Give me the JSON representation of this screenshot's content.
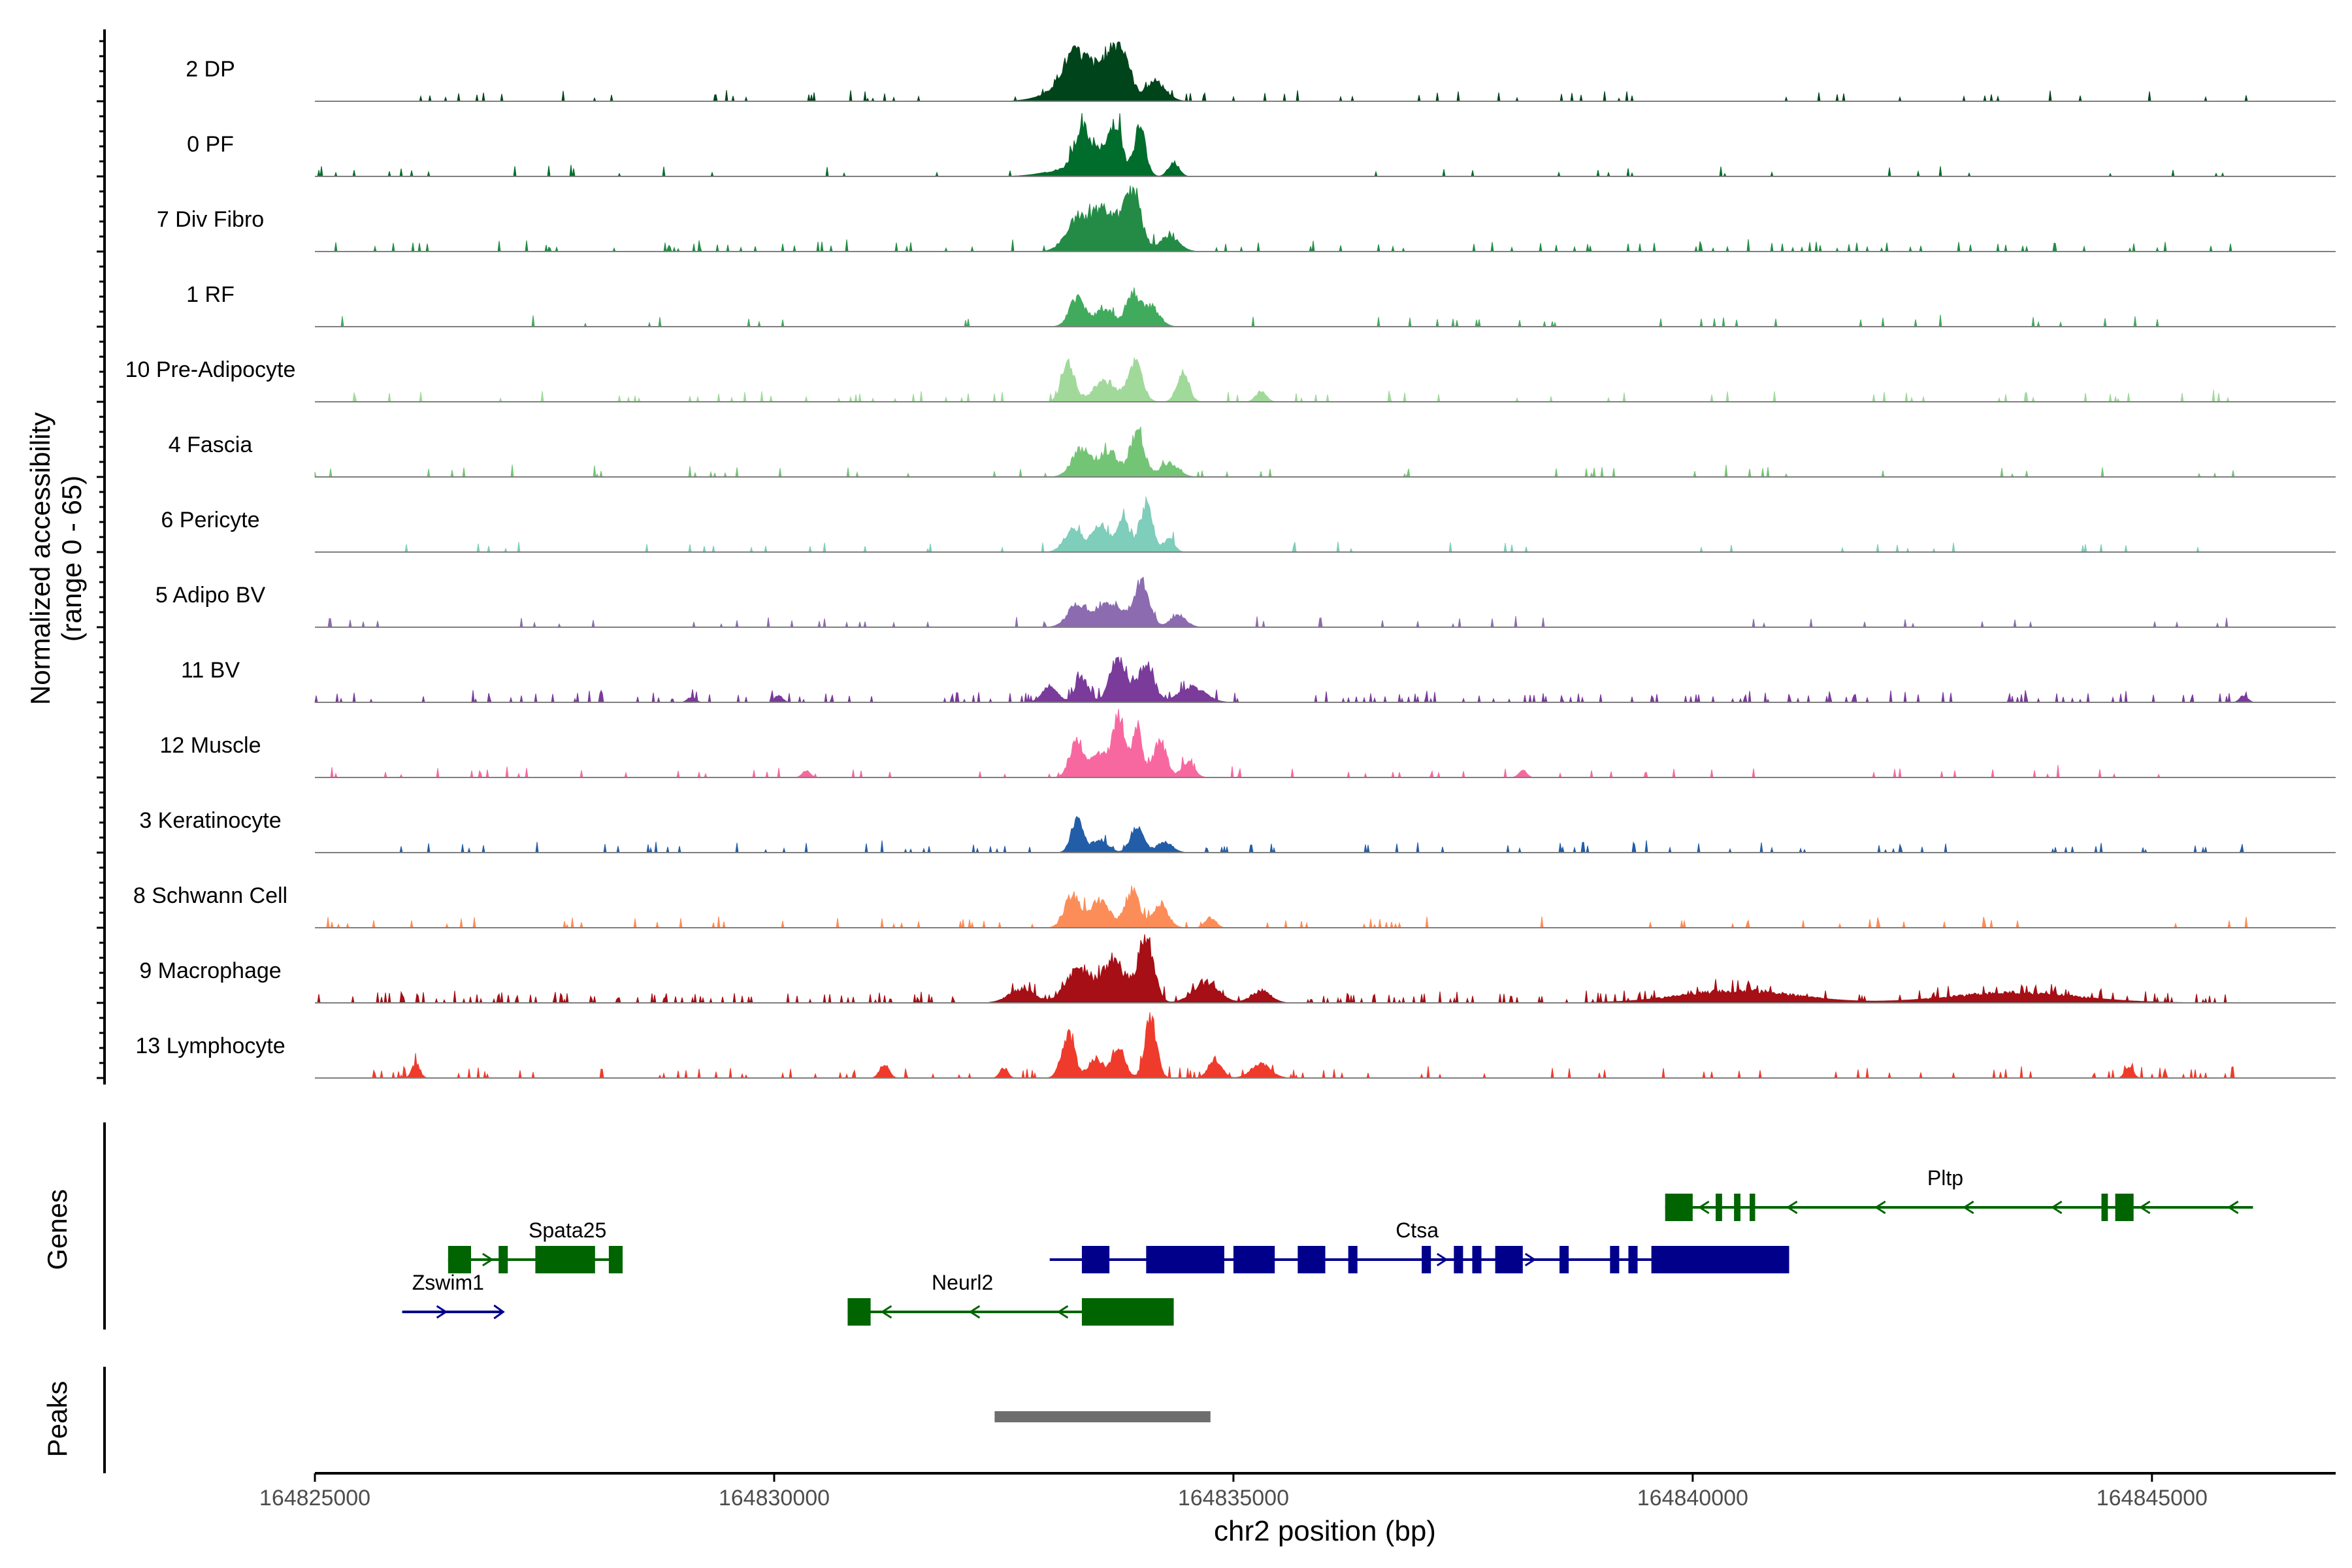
{
  "chart_data": {
    "type": "area",
    "title": "",
    "xlabel": "chr2 position (bp)",
    "ylabel_lines": [
      "Normalized accessibility",
      "(range 0 - 65)"
    ],
    "chromosome": "chr2",
    "xlim": [
      164825000,
      164847000
    ],
    "x_ticks": [
      164825000,
      164830000,
      164835000,
      164840000,
      164845000
    ],
    "x_tick_labels": [
      "164825000",
      "164830000",
      "164835000",
      "164840000",
      "164845000"
    ],
    "y_range": [
      0,
      65
    ],
    "track_start": 164825000,
    "track_end": 164846100,
    "tracks": [
      {
        "name": "2 DP",
        "color": "#00441b",
        "bumps": [
          [
            164833250,
            180,
            0.55
          ],
          [
            164833450,
            150,
            0.35
          ],
          [
            164833650,
            130,
            0.58
          ],
          [
            164833800,
            120,
            0.65
          ],
          [
            164834150,
            160,
            0.28
          ],
          [
            164833100,
            300,
            0.12
          ]
        ],
        "noise": 0.03
      },
      {
        "name": "0 PF",
        "color": "#006d2c",
        "bumps": [
          [
            164833350,
            120,
            0.62
          ],
          [
            164833550,
            120,
            0.3
          ],
          [
            164833720,
            100,
            0.78
          ],
          [
            164833980,
            90,
            0.72
          ],
          [
            164834350,
            80,
            0.22
          ],
          [
            164833200,
            350,
            0.1
          ]
        ],
        "noise": 0.03
      },
      {
        "name": "7 Div Fibro",
        "color": "#238b45",
        "bumps": [
          [
            164833300,
            180,
            0.45
          ],
          [
            164833600,
            200,
            0.6
          ],
          [
            164833900,
            130,
            0.9
          ],
          [
            164834300,
            150,
            0.22
          ]
        ],
        "noise": 0.07
      },
      {
        "name": "1 RF",
        "color": "#41ab5d",
        "bumps": [
          [
            164833300,
            120,
            0.42
          ],
          [
            164833600,
            150,
            0.25
          ],
          [
            164833900,
            100,
            0.48
          ],
          [
            164834100,
            130,
            0.3
          ]
        ],
        "noise": 0.03
      },
      {
        "name": "10 Pre-Adipocyte",
        "color": "#a1d99b",
        "bumps": [
          [
            164833200,
            100,
            0.55
          ],
          [
            164833600,
            180,
            0.3
          ],
          [
            164833930,
            110,
            0.55
          ],
          [
            164834450,
            90,
            0.45
          ],
          [
            164835300,
            80,
            0.15
          ]
        ],
        "noise": 0.05
      },
      {
        "name": "4 Fascia",
        "color": "#74c476",
        "bumps": [
          [
            164833350,
            150,
            0.42
          ],
          [
            164833650,
            130,
            0.38
          ],
          [
            164833950,
            110,
            0.68
          ],
          [
            164834300,
            140,
            0.2
          ]
        ],
        "noise": 0.03
      },
      {
        "name": "6 Pericyte",
        "color": "#7fcdbb",
        "bumps": [
          [
            164833250,
            130,
            0.35
          ],
          [
            164833550,
            130,
            0.4
          ],
          [
            164833800,
            90,
            0.55
          ],
          [
            164834050,
            100,
            0.72
          ],
          [
            164834300,
            80,
            0.2
          ]
        ],
        "noise": 0.03
      },
      {
        "name": "5 Adipo BV",
        "color": "#8c6bb1",
        "bumps": [
          [
            164833300,
            150,
            0.32
          ],
          [
            164833650,
            200,
            0.38
          ],
          [
            164834000,
            120,
            0.65
          ],
          [
            164834400,
            120,
            0.18
          ]
        ],
        "noise": 0.04
      },
      {
        "name": "11 BV",
        "color": "#7a3b9a",
        "bumps": [
          [
            164833000,
            120,
            0.22
          ],
          [
            164833350,
            100,
            0.35
          ],
          [
            164833750,
            130,
            0.65
          ],
          [
            164834050,
            120,
            0.55
          ],
          [
            164834550,
            200,
            0.22
          ],
          [
            164829100,
            60,
            0.08
          ],
          [
            164830050,
            60,
            0.1
          ],
          [
            164846000,
            60,
            0.1
          ]
        ],
        "noise": 0.12
      },
      {
        "name": "12 Muscle",
        "color": "#f768a1",
        "bumps": [
          [
            164833300,
            110,
            0.55
          ],
          [
            164833550,
            120,
            0.35
          ],
          [
            164833750,
            90,
            0.95
          ],
          [
            164833950,
            80,
            0.75
          ],
          [
            164834200,
            100,
            0.55
          ],
          [
            164834500,
            100,
            0.22
          ],
          [
            164830350,
            60,
            0.1
          ],
          [
            164838150,
            60,
            0.1
          ]
        ],
        "noise": 0.05
      },
      {
        "name": "3 Keratinocyte",
        "color": "#225ea8",
        "bumps": [
          [
            164833300,
            90,
            0.5
          ],
          [
            164833550,
            120,
            0.2
          ],
          [
            164833950,
            100,
            0.38
          ],
          [
            164834250,
            120,
            0.15
          ]
        ],
        "noise": 0.05
      },
      {
        "name": "8 Schwann Cell",
        "color": "#fc8d59",
        "bumps": [
          [
            164833250,
            120,
            0.5
          ],
          [
            164833550,
            150,
            0.4
          ],
          [
            164833900,
            110,
            0.55
          ],
          [
            164834200,
            120,
            0.35
          ],
          [
            164834750,
            80,
            0.15
          ]
        ],
        "noise": 0.05
      },
      {
        "name": "9 Macrophage",
        "color": "#a50f15",
        "bumps": [
          [
            164832700,
            200,
            0.2
          ],
          [
            164833300,
            180,
            0.5
          ],
          [
            164833700,
            200,
            0.6
          ],
          [
            164834050,
            120,
            0.95
          ],
          [
            164834700,
            200,
            0.3
          ],
          [
            164835300,
            150,
            0.18
          ],
          [
            164840500,
            900,
            0.18
          ],
          [
            164843500,
            1000,
            0.15
          ]
        ],
        "noise": 0.15
      },
      {
        "name": "13 Lymphocyte",
        "color": "#ef3b2c",
        "bumps": [
          [
            164833200,
            100,
            0.65
          ],
          [
            164833500,
            110,
            0.3
          ],
          [
            164833750,
            100,
            0.45
          ],
          [
            164834100,
            90,
            0.9
          ],
          [
            164834800,
            100,
            0.28
          ],
          [
            164835300,
            150,
            0.2
          ],
          [
            164826100,
            60,
            0.22
          ],
          [
            164831200,
            70,
            0.2
          ],
          [
            164832500,
            60,
            0.15
          ],
          [
            164844750,
            60,
            0.18
          ]
        ],
        "noise": 0.08
      }
    ],
    "genes": [
      {
        "name": "Spata25",
        "strand": "+",
        "color": "#006400",
        "row": 1,
        "start": 164826450,
        "end": 164828350,
        "exons": [
          [
            164826450,
            164826700
          ],
          [
            164827000,
            164827100
          ],
          [
            164827400,
            164828050
          ],
          [
            164828200,
            164828350
          ]
        ],
        "label_x": 164827750
      },
      {
        "name": "Zswim1",
        "strand": "+",
        "color": "#00008b",
        "row": 2,
        "start": 164825950,
        "end": 164827050,
        "exons": [],
        "label_x": 164826450
      },
      {
        "name": "Neurl2",
        "strand": "-",
        "color": "#006400",
        "row": 2,
        "start": 164830800,
        "end": 164834350,
        "exons": [
          [
            164830800,
            164831050
          ],
          [
            164833350,
            164834350
          ]
        ],
        "label_x": 164832050
      },
      {
        "name": "Ctsa",
        "strand": "+",
        "color": "#00008b",
        "row": 1,
        "start": 164833000,
        "end": 164841050,
        "exons": [
          [
            164833350,
            164833650
          ],
          [
            164834050,
            164834900
          ],
          [
            164835000,
            164835450
          ],
          [
            164835700,
            164836000
          ],
          [
            164836250,
            164836350
          ],
          [
            164837050,
            164837150
          ],
          [
            164837400,
            164837500
          ],
          [
            164837600,
            164837700
          ],
          [
            164837850,
            164838150
          ],
          [
            164838550,
            164838650
          ],
          [
            164839100,
            164839200
          ],
          [
            164839300,
            164839400
          ],
          [
            164839550,
            164841050
          ]
        ],
        "label_x": 164837000
      },
      {
        "name": "Pltp",
        "strand": "-",
        "color": "#006400",
        "row": 0,
        "start": 164839700,
        "end": 164846100,
        "exons": [
          [
            164839700,
            164840000
          ],
          [
            164840250,
            164840320
          ],
          [
            164840450,
            164840520
          ],
          [
            164840620,
            164840680
          ],
          [
            164844450,
            164844520
          ],
          [
            164844600,
            164844800
          ]
        ],
        "label_x": 164842750
      }
    ],
    "peaks": [
      [
        164832400,
        164834750
      ]
    ],
    "panel_labels": {
      "genes": "Genes",
      "peaks": "Peaks"
    }
  }
}
